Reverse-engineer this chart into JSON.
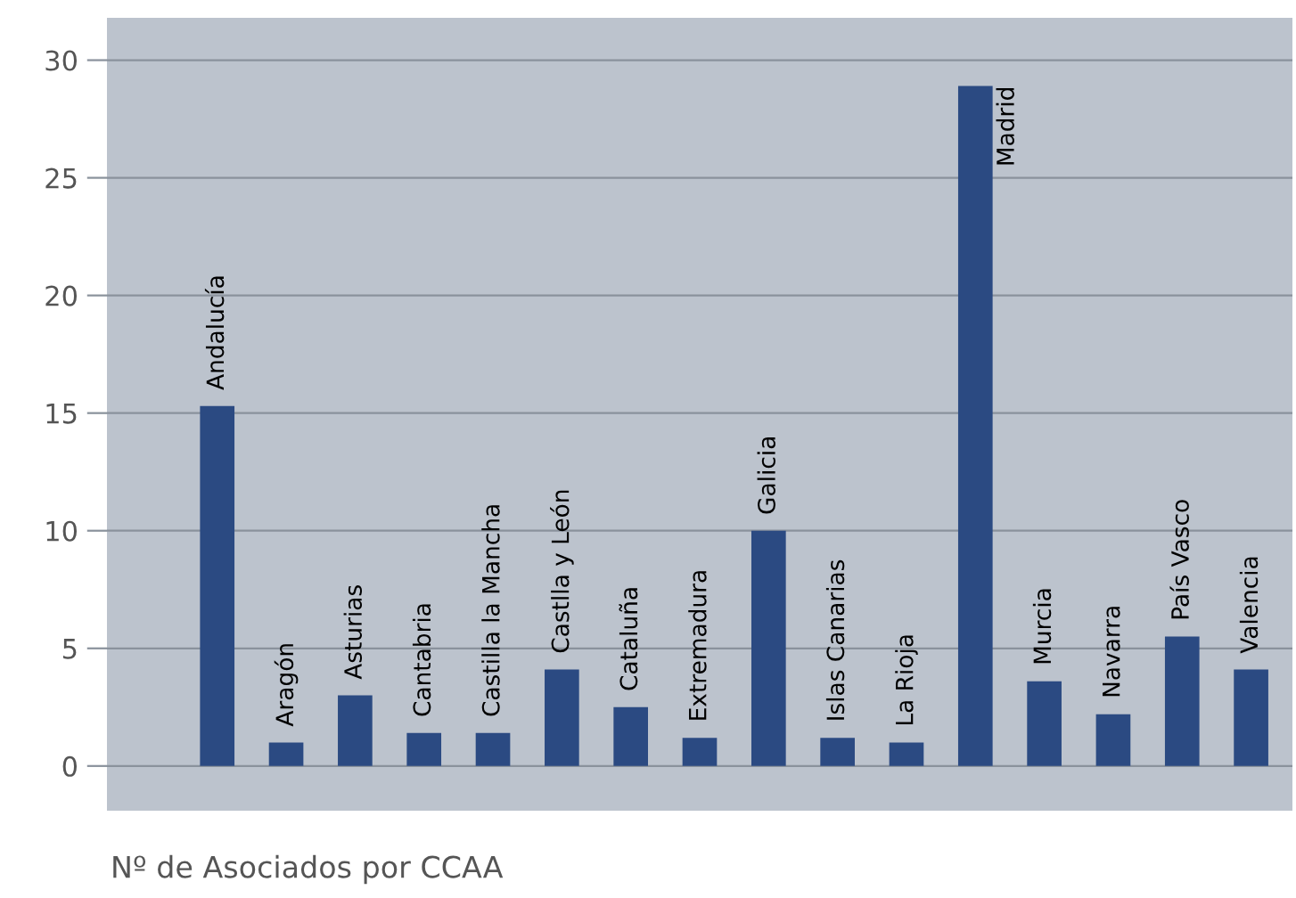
{
  "chart_data": {
    "type": "bar",
    "xlabel": "Nº de Asociados por CCAA",
    "categories": [
      "Andalucía",
      "Aragón",
      "Asturias",
      "Cantabria",
      "Castilla la Mancha",
      "Castlla y León",
      "Cataluña",
      "Extremadura",
      "Galicia",
      "Islas Canarias",
      "La Rioja",
      "Madrid",
      "Murcia",
      "Navarra",
      "País Vasco",
      "Valencia"
    ],
    "values": [
      15.3,
      1,
      3,
      1.4,
      1.4,
      4.1,
      2.5,
      1.2,
      10,
      1.2,
      1,
      28.9,
      3.6,
      2.2,
      5.5,
      4.1
    ],
    "color": "#2b4a82",
    "ylim": [
      -1.9,
      31.8
    ],
    "yticks": [
      0,
      5,
      10,
      15,
      20,
      25,
      30
    ],
    "grid": "y"
  }
}
